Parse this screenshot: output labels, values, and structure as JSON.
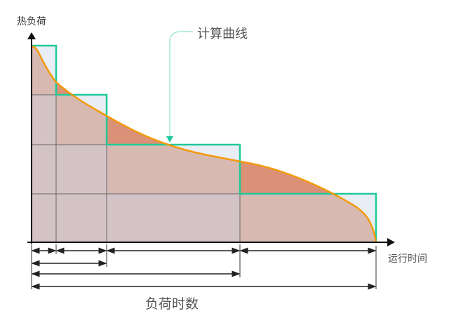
{
  "labels": {
    "y_axis": "热负荷",
    "x_axis": "运行时间",
    "duration": "负荷时数",
    "curve": "计算曲线"
  },
  "colors": {
    "step_line": "#1fc99a",
    "curve_line": "#f29a0c",
    "step_fill": "#e8edf6",
    "curve_excess_fill": "#da9177",
    "overlap_fill": "#d7b9b2"
  }
}
